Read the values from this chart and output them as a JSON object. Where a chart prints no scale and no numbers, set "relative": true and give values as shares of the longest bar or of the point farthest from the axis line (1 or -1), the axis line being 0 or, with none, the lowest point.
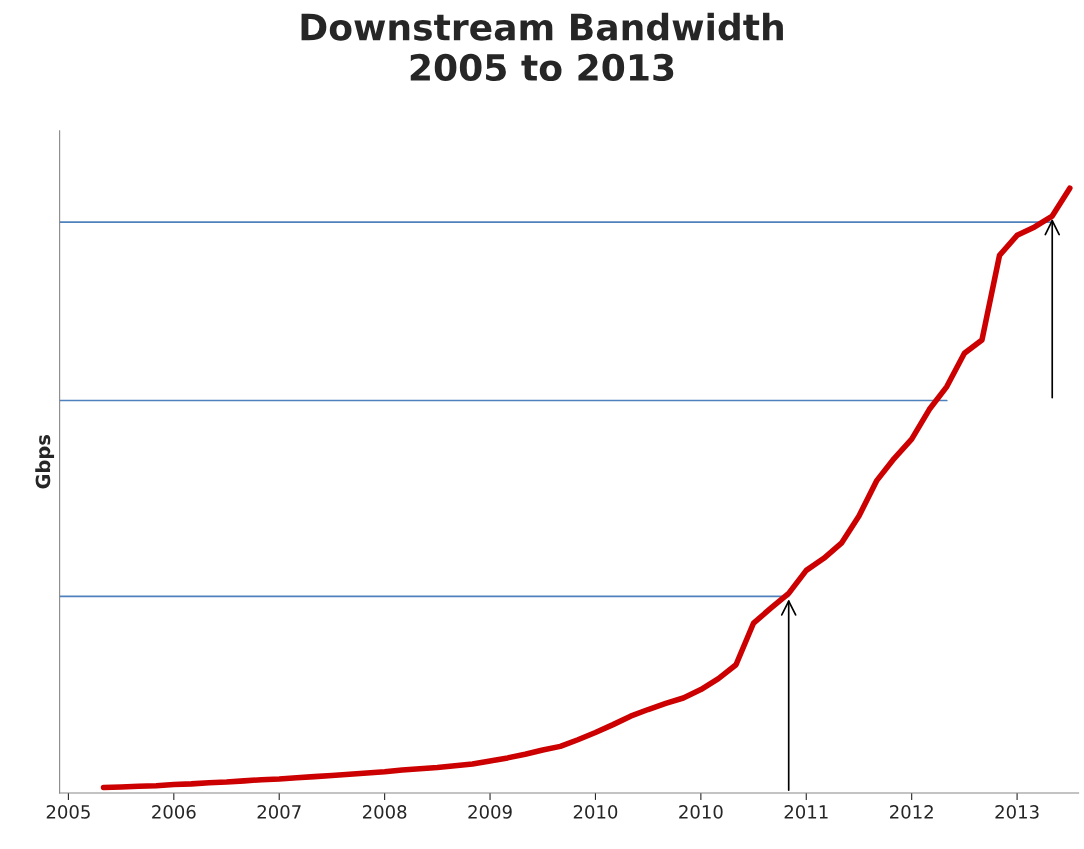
{
  "chart_data": {
    "type": "line",
    "title": "Downstream Bandwidth\n2005 to 2013",
    "ylabel": "Gbps",
    "relative": true,
    "grid": false,
    "legend": false,
    "marker": "none",
    "line_style": "solid",
    "categories": [
      "2005",
      null,
      null,
      null,
      null,
      null,
      "2006",
      null,
      null,
      null,
      null,
      null,
      "2007",
      null,
      null,
      null,
      null,
      null,
      "2008",
      null,
      null,
      null,
      null,
      null,
      "2009",
      null,
      null,
      null,
      null,
      null,
      "2010",
      null,
      null,
      null,
      null,
      null,
      "2010",
      null,
      null,
      null,
      null,
      null,
      "2011",
      null,
      null,
      null,
      null,
      null,
      "2012",
      null,
      null,
      null,
      null,
      null,
      "2013",
      null,
      null,
      null
    ],
    "series": [
      {
        "color": "#cc0000",
        "values": [
          null,
          null,
          0.009,
          0.01,
          0.011,
          0.012,
          0.014,
          0.015,
          0.017,
          0.018,
          0.02,
          0.022,
          0.023,
          0.025,
          0.027,
          0.029,
          0.031,
          0.033,
          0.035,
          0.038,
          0.04,
          0.042,
          0.045,
          0.048,
          0.053,
          0.058,
          0.064,
          0.071,
          0.077,
          0.088,
          0.1,
          0.113,
          0.127,
          0.138,
          0.148,
          0.157,
          0.171,
          0.189,
          0.212,
          0.281,
          0.306,
          0.33,
          0.368,
          0.388,
          0.413,
          0.458,
          0.516,
          0.553,
          0.585,
          0.634,
          0.672,
          0.727,
          0.749,
          0.889,
          0.922,
          0.936,
          0.954,
          1.0
        ]
      }
    ],
    "tick_labels": "x",
    "ref_lines": [
      {
        "axis": "y",
        "value": 0.325,
        "color": "#4f81bd"
      },
      {
        "axis": "y",
        "value": 0.649,
        "color": "#4f81bd"
      },
      {
        "axis": "y",
        "value": 0.944,
        "color": "#4f81bd"
      }
    ]
  }
}
